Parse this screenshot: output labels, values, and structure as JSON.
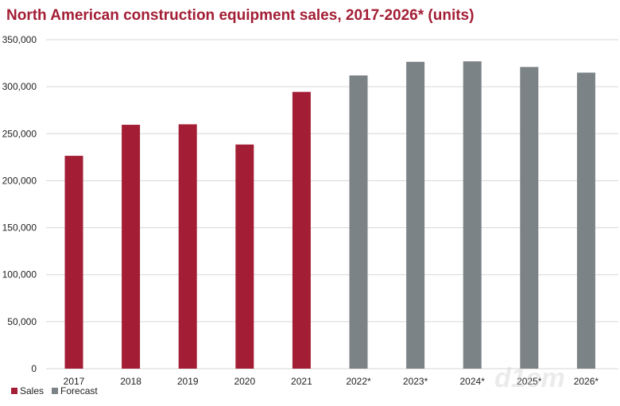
{
  "chart_data": {
    "type": "bar",
    "title": "North American construction equipment sales, 2017-2026* (units)",
    "categories": [
      "2017",
      "2018",
      "2019",
      "2020",
      "2021",
      "2022*",
      "2023*",
      "2024*",
      "2025*",
      "2026*"
    ],
    "series": [
      {
        "name": "Sales",
        "color": "#a31e35",
        "values": [
          226500,
          259500,
          260000,
          238500,
          294500,
          null,
          null,
          null,
          null,
          null
        ]
      },
      {
        "name": "Forecast",
        "color": "#7c8387",
        "values": [
          null,
          null,
          null,
          null,
          null,
          312000,
          326500,
          327000,
          321000,
          315000
        ]
      }
    ],
    "ylim": [
      0,
      350000
    ],
    "yticks": [
      "0",
      "50,000",
      "100,000",
      "150,000",
      "200,000",
      "250,000",
      "300,000",
      "350,000"
    ],
    "grid": true,
    "legend_position": "bottom-left"
  },
  "legend": {
    "items": [
      {
        "label": "Sales",
        "color": "#a31e35"
      },
      {
        "label": "Forecast",
        "color": "#7c8387"
      }
    ]
  },
  "colors": {
    "title": "#a31e35",
    "grid": "#d6d6d6"
  }
}
